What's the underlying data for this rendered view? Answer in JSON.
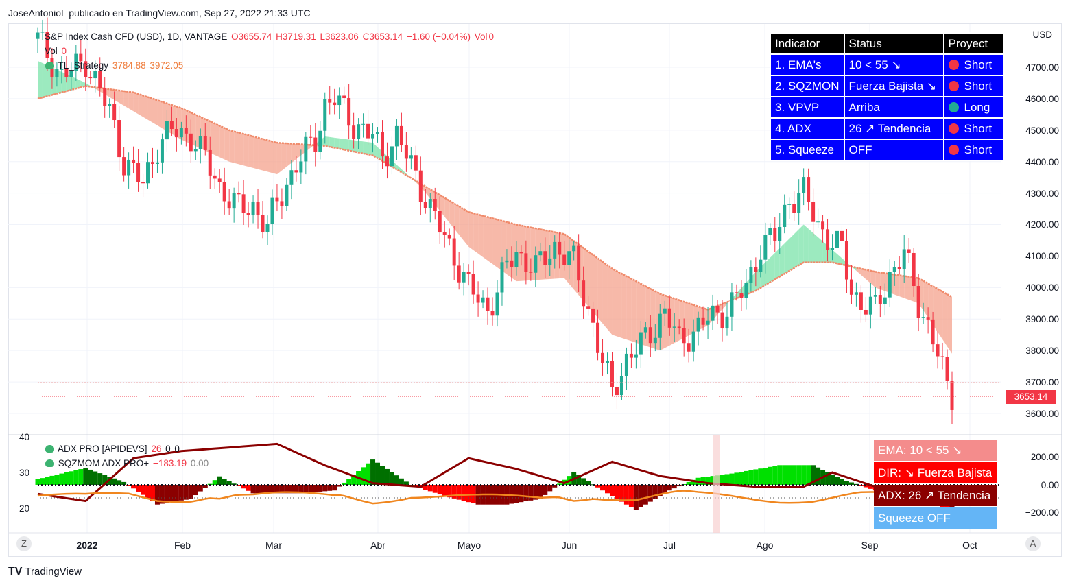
{
  "header": {
    "publisher_line": "JoseAntonioL publicado en TradingView.com, Sep 27, 2022 21:33 UTC"
  },
  "main_legend": {
    "symbol": "S&P Index Cash CFD (USD), 1D, VANTAGE",
    "open": "O3655.74",
    "high": "H3719.31",
    "low": "L3623.06",
    "close": "C3653.14",
    "change": "−1.60 (−0.04%)",
    "vol_label": "Vol",
    "vol_value": "0",
    "strategy_name": "TL_Strategy",
    "strategy_v1": "3784.88",
    "strategy_v2": "3972.05"
  },
  "status_table": {
    "headers": [
      "Indicator",
      "Status",
      "Proyect"
    ],
    "rows": [
      {
        "indicator": "1. EMA's",
        "status": "10 < 55 ↘",
        "proyect": "Short",
        "dot": "#f23645"
      },
      {
        "indicator": "2. SQZMON",
        "status": "Fuerza Bajista ↘",
        "proyect": "Short",
        "dot": "#f23645"
      },
      {
        "indicator": "3. VPVP",
        "status": "Arriba",
        "proyect": "Long",
        "dot": "#22ab94"
      },
      {
        "indicator": "4. ADX",
        "status": "26 ↗ Tendencia",
        "proyect": "Short",
        "dot": "#f23645"
      },
      {
        "indicator": "5. Squeeze",
        "status": "OFF",
        "proyect": "Short",
        "dot": "#f23645"
      }
    ]
  },
  "price_axis": {
    "currency": "USD",
    "ticks": [
      "4700.00",
      "4600.00",
      "4500.00",
      "4400.00",
      "4300.00",
      "4200.00",
      "4100.00",
      "4000.00",
      "3900.00",
      "3800.00",
      "3700.00",
      "3600.00"
    ],
    "last_price": "3653.14"
  },
  "osc_legend": {
    "adx_name": "ADX PRO [APIDEVS]",
    "adx_v1": "26",
    "adx_v2": "0",
    "adx_v3": "0",
    "sqz_name": "SQZMOM ADX PRO+",
    "sqz_v1": "−183.19",
    "sqz_v2": "0.00"
  },
  "osc_left_axis": {
    "ticks": [
      "40",
      "30",
      "20"
    ]
  },
  "osc_right_axis": {
    "ticks": [
      "200.00",
      "0.00",
      "−200.00"
    ]
  },
  "osc_boxes": [
    {
      "text": "EMA: 10 < 55 ↘",
      "color": "#f48c8c"
    },
    {
      "text": "DIR: ↘ Fuerza Bajista",
      "color": "#ff0000"
    },
    {
      "text": "ADX: 26 ↗ Tendencia",
      "color": "#8b0000"
    },
    {
      "text": "Squeeze OFF",
      "color": "#64b5f6"
    }
  ],
  "time_axis": {
    "ticks": [
      "2022",
      "Feb",
      "Mar",
      "Abr",
      "Mayo",
      "Jun",
      "Jul",
      "Ago",
      "Sep",
      "Oct"
    ]
  },
  "buttons": {
    "left": "Z",
    "right": "A"
  },
  "brand": "TradingView",
  "colors": {
    "up": "#22ab94",
    "down": "#f23645",
    "band_bull": "#7be3a9",
    "band_bear": "#f4a28c"
  },
  "chart_data": {
    "type": "candlestick",
    "title": "S&P Index Cash CFD (USD), 1D, VANTAGE",
    "x_range": [
      "2022-01-03",
      "2022-09-27"
    ],
    "ylim": [
      3560,
      4780
    ],
    "close_approx": [
      [
        0,
        4790
      ],
      [
        5,
        4670
      ],
      [
        10,
        4720
      ],
      [
        15,
        4560
      ],
      [
        18,
        4400
      ],
      [
        22,
        4330
      ],
      [
        25,
        4450
      ],
      [
        28,
        4500
      ],
      [
        32,
        4480
      ],
      [
        35,
        4410
      ],
      [
        38,
        4320
      ],
      [
        42,
        4250
      ],
      [
        45,
        4260
      ],
      [
        48,
        4190
      ],
      [
        50,
        4270
      ],
      [
        54,
        4390
      ],
      [
        58,
        4470
      ],
      [
        60,
        4580
      ],
      [
        62,
        4600
      ],
      [
        66,
        4520
      ],
      [
        70,
        4480
      ],
      [
        72,
        4420
      ],
      [
        75,
        4480
      ],
      [
        78,
        4390
      ],
      [
        82,
        4250
      ],
      [
        86,
        4130
      ],
      [
        90,
        4000
      ],
      [
        94,
        3930
      ],
      [
        96,
        3990
      ],
      [
        98,
        4070
      ],
      [
        100,
        4110
      ],
      [
        104,
        4060
      ],
      [
        108,
        4130
      ],
      [
        112,
        4080
      ],
      [
        116,
        3880
      ],
      [
        118,
        3760
      ],
      [
        120,
        3670
      ],
      [
        123,
        3770
      ],
      [
        126,
        3820
      ],
      [
        128,
        3860
      ],
      [
        131,
        3920
      ],
      [
        134,
        3830
      ],
      [
        137,
        3860
      ],
      [
        140,
        3900
      ],
      [
        144,
        3930
      ],
      [
        148,
        4000
      ],
      [
        151,
        4130
      ],
      [
        154,
        4160
      ],
      [
        157,
        4280
      ],
      [
        160,
        4300
      ],
      [
        163,
        4200
      ],
      [
        166,
        4140
      ],
      [
        168,
        4120
      ],
      [
        170,
        3990
      ],
      [
        172,
        3950
      ],
      [
        175,
        3930
      ],
      [
        178,
        4040
      ],
      [
        181,
        4110
      ],
      [
        184,
        3950
      ],
      [
        186,
        3880
      ],
      [
        188,
        3790
      ],
      [
        190,
        3680
      ],
      [
        191,
        3655
      ]
    ],
    "ema_fast_approx": [
      [
        0,
        4720
      ],
      [
        10,
        4650
      ],
      [
        20,
        4560
      ],
      [
        30,
        4470
      ],
      [
        40,
        4400
      ],
      [
        50,
        4360
      ],
      [
        60,
        4480
      ],
      [
        70,
        4460
      ],
      [
        80,
        4320
      ],
      [
        90,
        4130
      ],
      [
        100,
        4020
      ],
      [
        110,
        4030
      ],
      [
        120,
        3850
      ],
      [
        130,
        3800
      ],
      [
        140,
        3880
      ],
      [
        150,
        4050
      ],
      [
        160,
        4200
      ],
      [
        166,
        4120
      ],
      [
        175,
        4000
      ],
      [
        184,
        3950
      ],
      [
        191,
        3790
      ]
    ],
    "ema_slow_approx": [
      [
        0,
        4600
      ],
      [
        10,
        4640
      ],
      [
        20,
        4620
      ],
      [
        30,
        4570
      ],
      [
        40,
        4500
      ],
      [
        50,
        4460
      ],
      [
        60,
        4450
      ],
      [
        70,
        4420
      ],
      [
        80,
        4330
      ],
      [
        90,
        4240
      ],
      [
        100,
        4200
      ],
      [
        110,
        4170
      ],
      [
        120,
        4060
      ],
      [
        130,
        3980
      ],
      [
        140,
        3930
      ],
      [
        150,
        3990
      ],
      [
        160,
        4080
      ],
      [
        166,
        4080
      ],
      [
        175,
        4050
      ],
      [
        184,
        4030
      ],
      [
        191,
        3970
      ]
    ],
    "adx_approx": [
      [
        0,
        24
      ],
      [
        10,
        22
      ],
      [
        20,
        34
      ],
      [
        30,
        36
      ],
      [
        40,
        37
      ],
      [
        50,
        38
      ],
      [
        60,
        32
      ],
      [
        70,
        27
      ],
      [
        80,
        26
      ],
      [
        90,
        34
      ],
      [
        100,
        31
      ],
      [
        110,
        27
      ],
      [
        120,
        33
      ],
      [
        130,
        29
      ],
      [
        140,
        27
      ],
      [
        150,
        26
      ],
      [
        160,
        26
      ],
      [
        166,
        30
      ],
      [
        175,
        26
      ],
      [
        184,
        25
      ],
      [
        191,
        26
      ]
    ],
    "squeeze_momentum_approx": [
      [
        0,
        40
      ],
      [
        10,
        120
      ],
      [
        18,
        20
      ],
      [
        25,
        -140
      ],
      [
        32,
        -100
      ],
      [
        38,
        60
      ],
      [
        45,
        -60
      ],
      [
        55,
        -60
      ],
      [
        62,
        -40
      ],
      [
        70,
        180
      ],
      [
        78,
        0
      ],
      [
        85,
        -80
      ],
      [
        92,
        -140
      ],
      [
        98,
        -140
      ],
      [
        105,
        -100
      ],
      [
        112,
        90
      ],
      [
        118,
        -40
      ],
      [
        125,
        -180
      ],
      [
        132,
        -40
      ],
      [
        138,
        50
      ],
      [
        145,
        80
      ],
      [
        155,
        140
      ],
      [
        162,
        140
      ],
      [
        168,
        40
      ],
      [
        175,
        -40
      ],
      [
        184,
        -100
      ],
      [
        191,
        -183
      ]
    ],
    "osc_left_ylim": [
      15,
      42
    ],
    "osc_right_ylim": [
      -300,
      300
    ]
  }
}
